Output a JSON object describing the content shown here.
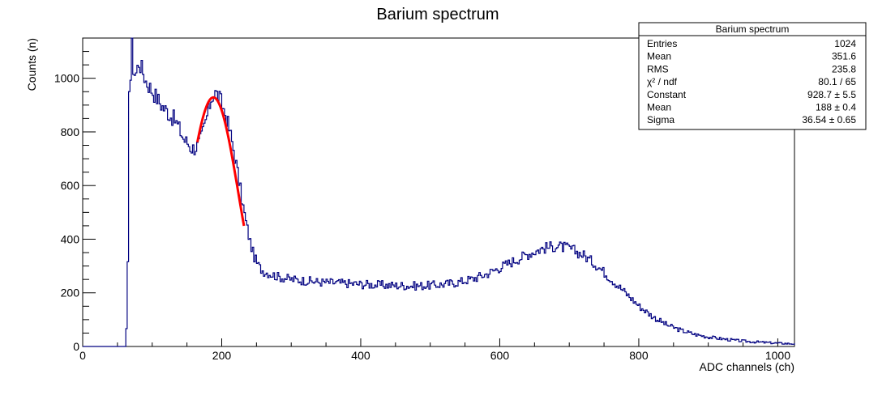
{
  "chart_data": {
    "type": "histogram",
    "title": "Barium spectrum",
    "xlabel": "ADC channels (ch)",
    "ylabel": "Counts (n)",
    "xlim": [
      0,
      1024
    ],
    "ylim": [
      0,
      1150
    ],
    "x_ticks": [
      0,
      200,
      400,
      600,
      800,
      1000
    ],
    "y_ticks": [
      0,
      200,
      400,
      600,
      800,
      1000
    ],
    "grid": false,
    "histogram_color": "#000080",
    "fit_color": "#ff0000",
    "series": {
      "histogram_points": [
        [
          0,
          0
        ],
        [
          60,
          0
        ],
        [
          62,
          60
        ],
        [
          64,
          300
        ],
        [
          65,
          700
        ],
        [
          66,
          980
        ],
        [
          68,
          1000
        ],
        [
          70,
          1120
        ],
        [
          72,
          1040
        ],
        [
          75,
          1010
        ],
        [
          80,
          1060
        ],
        [
          85,
          1030
        ],
        [
          90,
          990
        ],
        [
          95,
          970
        ],
        [
          100,
          950
        ],
        [
          105,
          930
        ],
        [
          110,
          910
        ],
        [
          115,
          890
        ],
        [
          120,
          880
        ],
        [
          125,
          860
        ],
        [
          130,
          850
        ],
        [
          135,
          830
        ],
        [
          140,
          800
        ],
        [
          145,
          770
        ],
        [
          150,
          760
        ],
        [
          155,
          740
        ],
        [
          160,
          740
        ],
        [
          165,
          750
        ],
        [
          170,
          780
        ],
        [
          175,
          830
        ],
        [
          180,
          880
        ],
        [
          185,
          935
        ],
        [
          190,
          945
        ],
        [
          195,
          930
        ],
        [
          200,
          900
        ],
        [
          205,
          860
        ],
        [
          210,
          810
        ],
        [
          215,
          750
        ],
        [
          220,
          680
        ],
        [
          225,
          600
        ],
        [
          230,
          520
        ],
        [
          235,
          450
        ],
        [
          240,
          390
        ],
        [
          245,
          340
        ],
        [
          250,
          310
        ],
        [
          255,
          290
        ],
        [
          260,
          280
        ],
        [
          270,
          270
        ],
        [
          280,
          260
        ],
        [
          290,
          255
        ],
        [
          300,
          250
        ],
        [
          320,
          245
        ],
        [
          340,
          240
        ],
        [
          360,
          238
        ],
        [
          380,
          235
        ],
        [
          400,
          232
        ],
        [
          420,
          230
        ],
        [
          440,
          228
        ],
        [
          460,
          227
        ],
        [
          480,
          226
        ],
        [
          500,
          228
        ],
        [
          520,
          232
        ],
        [
          540,
          240
        ],
        [
          560,
          252
        ],
        [
          580,
          270
        ],
        [
          600,
          295
        ],
        [
          620,
          320
        ],
        [
          640,
          345
        ],
        [
          660,
          365
        ],
        [
          680,
          375
        ],
        [
          700,
          365
        ],
        [
          720,
          340
        ],
        [
          740,
          300
        ],
        [
          760,
          250
        ],
        [
          780,
          200
        ],
        [
          800,
          150
        ],
        [
          820,
          110
        ],
        [
          840,
          80
        ],
        [
          860,
          60
        ],
        [
          880,
          45
        ],
        [
          900,
          35
        ],
        [
          920,
          28
        ],
        [
          940,
          22
        ],
        [
          960,
          18
        ],
        [
          980,
          15
        ],
        [
          1000,
          12
        ],
        [
          1024,
          10
        ]
      ],
      "fit": {
        "name": "gaus",
        "constant": 928.7,
        "mean": 188,
        "sigma": 36.54,
        "range": [
          165,
          232
        ]
      }
    }
  },
  "stats_box": {
    "title": "Barium spectrum",
    "rows": [
      {
        "label": "Entries",
        "value": "1024"
      },
      {
        "label": "Mean",
        "value": "351.6"
      },
      {
        "label": "RMS",
        "value": "235.8"
      },
      {
        "label": "χ² / ndf",
        "value": "80.1 / 65"
      },
      {
        "label": "Constant",
        "value": "928.7 ± 5.5"
      },
      {
        "label": "Mean",
        "value": "188 ± 0.4"
      },
      {
        "label": "Sigma",
        "value": "36.54 ± 0.65"
      }
    ]
  }
}
